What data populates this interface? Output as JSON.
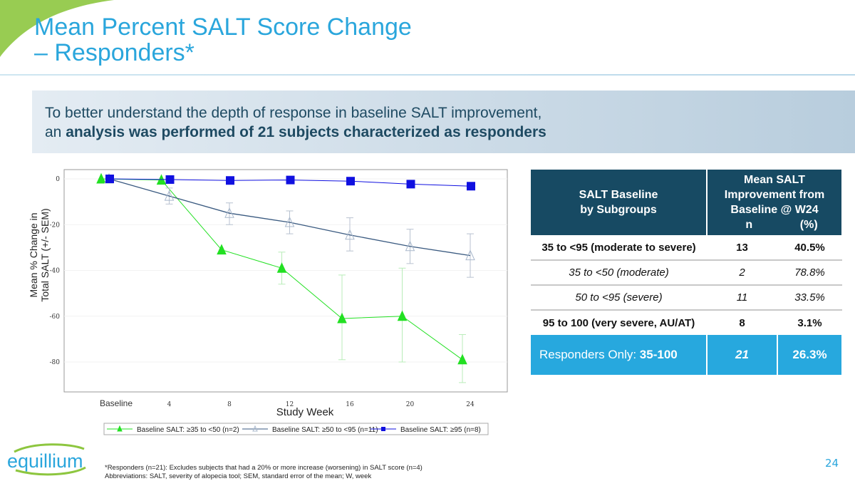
{
  "title": {
    "line1": "Mean Percent SALT Score Change",
    "line2": "– Responders*"
  },
  "banner": {
    "line1": "To better understand the depth of response in baseline SALT improvement,",
    "line2_prefix": "an ",
    "line2_bold": "analysis was performed of 21 subjects characterized as responders"
  },
  "chart_data": {
    "type": "line",
    "xlabel": "Study Week",
    "ylabel": "Mean % Change in Total SALT (+/- SEM)",
    "categories": [
      "Baseline",
      "4",
      "8",
      "12",
      "16",
      "20",
      "24"
    ],
    "yticks": [
      0,
      -20,
      -40,
      -60,
      -80
    ],
    "ylim": [
      -95,
      4
    ],
    "legend_position": "bottom",
    "series": [
      {
        "name": "Baseline SALT: ≥35 to <50 (n=2)",
        "color": "#22e022",
        "marker": "filled-triangle",
        "values": [
          0,
          -0.5,
          -31,
          -39,
          -61,
          -60,
          -79
        ],
        "err_low": [
          null,
          null,
          null,
          -46,
          -79,
          -80,
          -89
        ],
        "err_high": [
          null,
          null,
          null,
          -32,
          -42,
          -39,
          -68
        ]
      },
      {
        "name": "Baseline SALT: ≥50 to <95 (n=11)",
        "color": "#3a5a80",
        "marker": "open-triangle",
        "values": [
          0,
          -7.5,
          -15,
          -19,
          -24.5,
          -29.5,
          -33.5
        ],
        "err_low": [
          null,
          -11,
          -20,
          -24,
          -31.5,
          -37,
          -43
        ],
        "err_high": [
          null,
          -4,
          -10.5,
          -14,
          -17,
          -22,
          -24
        ]
      },
      {
        "name": "Baseline SALT: ≥95 (n=8)",
        "color": "#1010e0",
        "marker": "filled-square",
        "values": [
          0,
          -0.3,
          -0.7,
          -0.5,
          -1,
          -2.3,
          -3.2
        ]
      }
    ]
  },
  "table": {
    "headers": [
      "SALT Baseline\nby Subgroups",
      "Mean SALT\nImprovement from\nBaseline @ W24\nn            (%)"
    ],
    "h1a": "SALT Baseline",
    "h1b": "by Subgroups",
    "h2a": "Mean SALT",
    "h2b": "Improvement from",
    "h2c": "Baseline @ W24",
    "h2n": "n",
    "h2p": "(%)",
    "rows": [
      {
        "group": "35 to <95 (moderate to severe)",
        "n": "13",
        "pct": "40.5%"
      },
      {
        "group": "35 to <50 (moderate)",
        "n": "2",
        "pct": "78.8%"
      },
      {
        "group": "50 to <95 (severe)",
        "n": "11",
        "pct": "33.5%"
      },
      {
        "group": "95 to 100 (very severe, AU/AT)",
        "n": "8",
        "pct": "3.1%"
      }
    ],
    "total": {
      "label": "Responders Only: ",
      "range": "35-100",
      "n": "21",
      "pct": "26.3%"
    }
  },
  "logo": "equillium",
  "page_number": "24",
  "footnote": {
    "line1": "*Responders (n=21): Excludes subjects that had a 20% or more increase (worsening) in SALT score (n=4)",
    "line2": "Abbreviations: SALT, severity of alopecia tool; SEM, standard error of the mean; W, week"
  }
}
